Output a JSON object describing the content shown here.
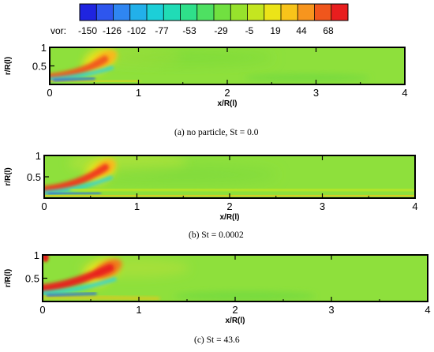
{
  "colorbar": {
    "label": "vor:",
    "ticks": [
      "-150",
      "-126",
      "-102",
      "-77",
      "-53",
      "-29",
      "-5",
      "19",
      "44",
      "68"
    ],
    "colors": [
      "#1f24e0",
      "#2e56ee",
      "#2f86f2",
      "#22b0ea",
      "#1ccfd8",
      "#20dcb6",
      "#2fe08a",
      "#4ee062",
      "#71e040",
      "#97e22c",
      "#c4e620",
      "#ece418",
      "#f8c41a",
      "#f7951e",
      "#f0561c",
      "#e81e1e"
    ]
  },
  "panels": [
    {
      "caption": "(a)  no particle, St = 0.0",
      "ylabel": "r/R(l)",
      "xlabel": "x/R(l)"
    },
    {
      "caption": "(b)  St = 0.0002",
      "ylabel": "r/R(l)",
      "xlabel": "x/R(l)"
    },
    {
      "caption": "(c) St = 43.6",
      "ylabel": "r/R(l)",
      "xlabel": "x/R(l)"
    }
  ],
  "chart_data": [
    {
      "type": "heatmap",
      "caption": "(a)  no particle, St = 0.0",
      "xlabel": "x/R(l)",
      "ylabel": "r/R(l)",
      "xlim": [
        0,
        4
      ],
      "ylim": [
        0,
        1
      ],
      "xticks": [
        "0",
        "1",
        "2",
        "3",
        "4"
      ],
      "yticks": [
        "0.5",
        "1"
      ],
      "colorbar_label": "vor:",
      "colorbar_ticks": [
        -150,
        -126,
        -102,
        -77,
        -53,
        -29,
        -5,
        19,
        44,
        68
      ]
    },
    {
      "type": "heatmap",
      "caption": "(b)  St = 0.0002",
      "xlabel": "x/R(l)",
      "ylabel": "r/R(l)",
      "xlim": [
        0,
        4
      ],
      "ylim": [
        0,
        1
      ],
      "xticks": [
        "0",
        "1",
        "2",
        "3",
        "4"
      ],
      "yticks": [
        "0.5",
        "1"
      ],
      "colorbar_label": "vor:",
      "colorbar_ticks": [
        -150,
        -126,
        -102,
        -77,
        -53,
        -29,
        -5,
        19,
        44,
        68
      ]
    },
    {
      "type": "heatmap",
      "caption": "(c) St = 43.6",
      "xlabel": "x/R(l)",
      "ylabel": "r/R(l)",
      "xlim": [
        0,
        4
      ],
      "ylim": [
        0,
        1
      ],
      "xticks": [
        "0",
        "1",
        "2",
        "3",
        "4"
      ],
      "yticks": [
        "0.5",
        "1"
      ],
      "colorbar_label": "vor:",
      "colorbar_ticks": [
        -150,
        -126,
        -102,
        -77,
        -53,
        -29,
        -5,
        19,
        44,
        68
      ]
    }
  ]
}
